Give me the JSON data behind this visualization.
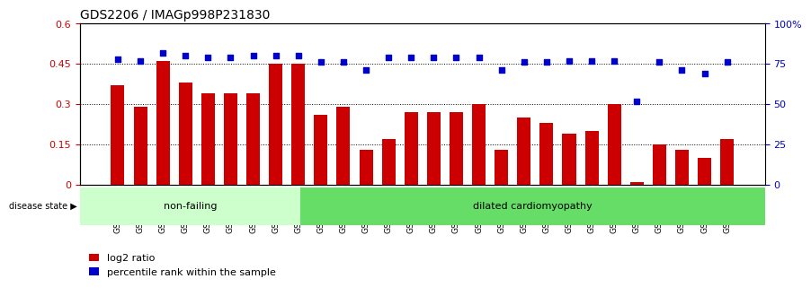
{
  "title": "GDS2206 / IMAGp998P231830",
  "samples": [
    "GSM82393",
    "GSM82394",
    "GSM82395",
    "GSM82396",
    "GSM82397",
    "GSM82398",
    "GSM82399",
    "GSM82400",
    "GSM82401",
    "GSM82402",
    "GSM82403",
    "GSM82404",
    "GSM82405",
    "GSM82406",
    "GSM82407",
    "GSM82408",
    "GSM82409",
    "GSM82410",
    "GSM82411",
    "GSM82412",
    "GSM82413",
    "GSM82414",
    "GSM82415",
    "GSM82416",
    "GSM82417",
    "GSM82418",
    "GSM82419",
    "GSM82420"
  ],
  "log2_ratio": [
    0.37,
    0.29,
    0.46,
    0.38,
    0.34,
    0.34,
    0.34,
    0.45,
    0.45,
    0.26,
    0.29,
    0.13,
    0.17,
    0.27,
    0.27,
    0.27,
    0.3,
    0.13,
    0.25,
    0.23,
    0.19,
    0.2,
    0.3,
    0.01,
    0.15,
    0.13,
    0.1,
    0.17
  ],
  "percentile": [
    78,
    77,
    82,
    80,
    79,
    79,
    80,
    80,
    80,
    76,
    76,
    71,
    79,
    79,
    79,
    79,
    79,
    71,
    76,
    76,
    77,
    77,
    77,
    52,
    76,
    71,
    69,
    76
  ],
  "non_failing_count": 9,
  "bar_color": "#cc0000",
  "scatter_color": "#0000cc",
  "non_failing_bg": "#ccffcc",
  "dilated_bg": "#66dd66",
  "yticks_left": [
    0,
    0.15,
    0.3,
    0.45,
    0.6
  ],
  "yticks_right": [
    0,
    25,
    50,
    75,
    100
  ],
  "ylim_left": [
    0,
    0.6
  ],
  "ylim_right": [
    0,
    100
  ],
  "disease_state_label": "disease state",
  "non_failing_label": "non-failing",
  "dilated_label": "dilated cardiomyopathy",
  "legend_bar_label": "log2 ratio",
  "legend_scatter_label": "percentile rank within the sample"
}
